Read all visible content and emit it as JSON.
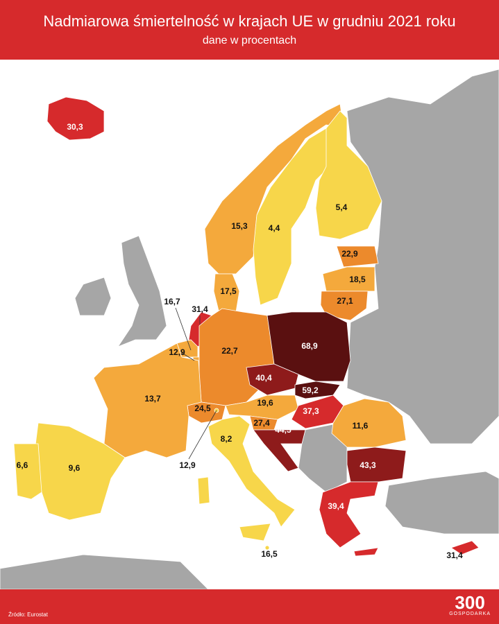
{
  "header": {
    "title": "Nadmiarowa śmiertelność w krajach UE w grudniu 2021 roku",
    "subtitle": "dane w procentach"
  },
  "regions": [
    {
      "value": 30.3,
      "label": "30,3",
      "color": "#d62a2c"
    },
    {
      "value": 15.3,
      "label": "15,3",
      "color": "#f4a93c"
    },
    {
      "value": 4.4,
      "label": "4,4",
      "color": "#f7d64a"
    },
    {
      "value": 5.4,
      "label": "5,4",
      "color": "#f7d64a"
    },
    {
      "value": 22.9,
      "label": "22,9",
      "color": "#ec8a2c"
    },
    {
      "value": 18.5,
      "label": "18,5",
      "color": "#f4a93c"
    },
    {
      "value": 27.1,
      "label": "27,1",
      "color": "#ec8a2c"
    },
    {
      "value": 17.5,
      "label": "17,5",
      "color": "#f4a93c"
    },
    {
      "value": 31.4,
      "label": "31,4",
      "color": "#d62a2c"
    },
    {
      "value": 16.7,
      "label": "16,7",
      "color": "#f4a93c"
    },
    {
      "value": 12.9,
      "label": "12,9",
      "color": "#f4a93c"
    },
    {
      "value": 22.7,
      "label": "22,7",
      "color": "#ec8a2c"
    },
    {
      "value": 68.9,
      "label": "68,9",
      "color": "#5a1010"
    },
    {
      "value": 40.4,
      "label": "40,4",
      "color": "#8e1b1b"
    },
    {
      "value": 59.2,
      "label": "59,2",
      "color": "#5a1010"
    },
    {
      "value": 19.6,
      "label": "19,6",
      "color": "#f4a93c"
    },
    {
      "value": 37.3,
      "label": "37,3",
      "color": "#d62a2c"
    },
    {
      "value": 11.6,
      "label": "11,6",
      "color": "#f4a93c"
    },
    {
      "value": 43.3,
      "label": "43,3",
      "color": "#8e1b1b"
    },
    {
      "value": 39.4,
      "label": "39,4",
      "color": "#d62a2c"
    },
    {
      "value": 27.4,
      "label": "27,4",
      "color": "#ec8a2c"
    },
    {
      "value": 44.5,
      "label": "44,5",
      "color": "#8e1b1b"
    },
    {
      "value": 24.5,
      "label": "24,5",
      "color": "#ec8a2c"
    },
    {
      "value": 13.7,
      "label": "13,7",
      "color": "#f4a93c"
    },
    {
      "value": 9.6,
      "label": "9,6",
      "color": "#f7d64a"
    },
    {
      "value": 6.6,
      "label": "6,6",
      "color": "#f7d64a"
    },
    {
      "value": 8.2,
      "label": "8,2",
      "color": "#f7d64a"
    },
    {
      "value": 12.9,
      "label": "12,9",
      "color": "#f7d64a"
    },
    {
      "value": 16.5,
      "label": "16,5",
      "color": "#f7d64a"
    },
    {
      "value": 31.4,
      "label": "31,4",
      "color": "#d62a2c"
    }
  ],
  "footer": {
    "source": "Źródło: Eurostat",
    "brand": "300",
    "brand_sub": "GOSPODARKA"
  }
}
